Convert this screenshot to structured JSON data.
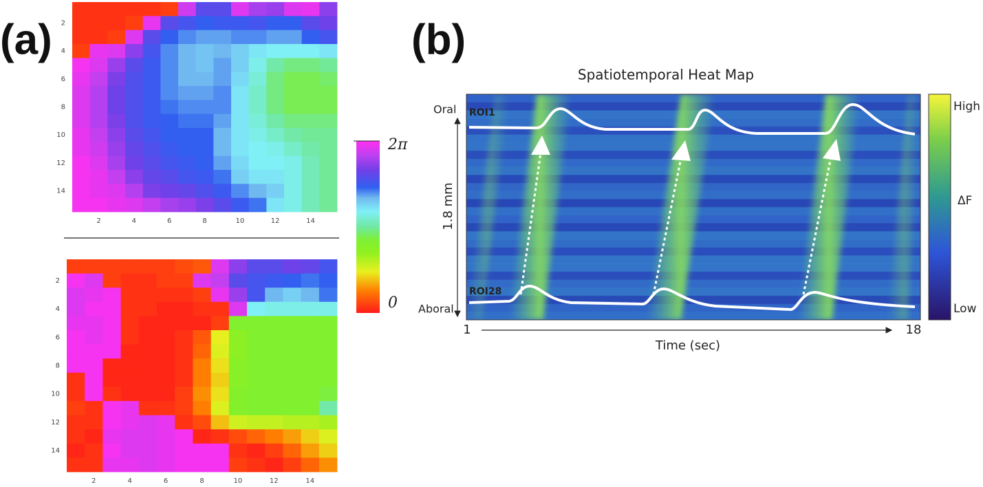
{
  "panel_labels": [
    "(a)",
    "(b)"
  ],
  "chart_data": [
    {
      "type": "heatmap",
      "x": [
        1,
        2,
        3,
        4,
        5,
        6,
        7,
        8,
        9,
        10,
        11,
        12,
        13,
        14,
        15
      ],
      "y": [
        1,
        2,
        3,
        4,
        5,
        6,
        7,
        8,
        9,
        10,
        11,
        12,
        13,
        14,
        15
      ],
      "xlim": [
        0.5,
        15.5
      ],
      "ylim": [
        0.5,
        15.5
      ],
      "xticks": [
        2,
        4,
        6,
        8,
        10,
        12,
        14
      ],
      "yticks": [
        2,
        4,
        6,
        8,
        10,
        12,
        14
      ],
      "z": [
        [
          0.2,
          0.2,
          0.2,
          0.2,
          0.2,
          0.3,
          5.9,
          5.0,
          5.0,
          6.0,
          5.6,
          5.5,
          6.0,
          6.1,
          5.4
        ],
        [
          0.2,
          0.2,
          0.2,
          0.3,
          6.1,
          5.0,
          4.8,
          4.6,
          4.7,
          4.7,
          4.8,
          4.6,
          4.6,
          5.0,
          5.2
        ],
        [
          0.2,
          0.2,
          0.3,
          6.0,
          5.0,
          4.6,
          4.4,
          4.3,
          4.3,
          4.4,
          4.4,
          4.3,
          4.3,
          4.6,
          4.8
        ],
        [
          0.3,
          6.1,
          6.0,
          5.4,
          4.8,
          4.4,
          4.2,
          4.1,
          4.2,
          4.0,
          3.8,
          3.7,
          3.7,
          3.7,
          3.8
        ],
        [
          6.2,
          6.0,
          5.5,
          5.0,
          4.7,
          4.4,
          4.2,
          4.1,
          4.3,
          4.0,
          3.6,
          3.2,
          3.0,
          3.0,
          3.1
        ],
        [
          6.1,
          5.8,
          5.3,
          4.9,
          4.7,
          4.4,
          4.2,
          4.2,
          4.3,
          3.9,
          3.5,
          3.0,
          2.8,
          2.8,
          2.9
        ],
        [
          6.0,
          5.7,
          5.2,
          4.9,
          4.7,
          4.4,
          4.3,
          4.3,
          4.4,
          3.8,
          3.4,
          3.0,
          2.8,
          2.8,
          2.8
        ],
        [
          6.0,
          5.7,
          5.2,
          4.9,
          4.7,
          4.5,
          4.4,
          4.4,
          4.4,
          3.8,
          3.4,
          3.0,
          2.8,
          2.8,
          2.8
        ],
        [
          6.0,
          5.7,
          5.3,
          4.9,
          4.7,
          4.6,
          4.5,
          4.5,
          4.3,
          3.8,
          3.5,
          3.2,
          3.0,
          3.0,
          3.0
        ],
        [
          6.1,
          5.8,
          5.4,
          5.0,
          4.8,
          4.6,
          4.6,
          4.6,
          4.2,
          3.8,
          3.6,
          3.4,
          3.2,
          3.1,
          3.1
        ],
        [
          6.1,
          5.9,
          5.5,
          5.1,
          4.9,
          4.7,
          4.6,
          4.6,
          4.2,
          3.8,
          3.7,
          3.6,
          3.4,
          3.2,
          3.1
        ],
        [
          6.2,
          6.0,
          5.6,
          5.2,
          5.0,
          4.8,
          4.7,
          4.6,
          4.3,
          3.9,
          3.7,
          3.7,
          3.6,
          3.3,
          3.1
        ],
        [
          6.2,
          6.1,
          5.8,
          5.4,
          5.1,
          5.0,
          4.8,
          4.7,
          4.5,
          4.0,
          3.8,
          3.8,
          3.6,
          3.3,
          3.1
        ],
        [
          6.2,
          6.1,
          6.0,
          5.7,
          5.3,
          5.2,
          5.1,
          4.9,
          4.7,
          4.4,
          4.2,
          4.0,
          3.6,
          3.3,
          3.1
        ],
        [
          6.2,
          6.2,
          6.1,
          6.0,
          5.8,
          5.6,
          5.5,
          5.3,
          5.0,
          4.7,
          4.5,
          3.8,
          3.6,
          3.3,
          3.1
        ]
      ]
    },
    {
      "type": "heatmap",
      "x": [
        1,
        2,
        3,
        4,
        5,
        6,
        7,
        8,
        9,
        10,
        11,
        12,
        13,
        14,
        15
      ],
      "y": [
        1,
        2,
        3,
        4,
        5,
        6,
        7,
        8,
        9,
        10,
        11,
        12,
        13,
        14,
        15
      ],
      "xlim": [
        0.5,
        15.5
      ],
      "ylim": [
        0.5,
        15.5
      ],
      "xticks": [
        2,
        4,
        6,
        8,
        10,
        12,
        14
      ],
      "yticks": [
        2,
        4,
        6,
        8,
        10,
        12,
        14
      ],
      "z": [
        [
          0.3,
          0.3,
          0.3,
          0.3,
          0.3,
          0.3,
          0.4,
          0.5,
          6.0,
          5.4,
          5.0,
          5.0,
          5.2,
          5.1,
          4.8
        ],
        [
          6.2,
          6.0,
          0.3,
          0.2,
          0.2,
          0.3,
          0.3,
          6.0,
          5.8,
          5.0,
          4.8,
          4.7,
          4.6,
          4.5,
          4.6
        ],
        [
          6.0,
          6.1,
          6.2,
          0.2,
          0.2,
          0.2,
          0.2,
          0.3,
          6.1,
          5.5,
          4.8,
          4.2,
          4.0,
          4.2,
          4.5
        ],
        [
          6.0,
          6.2,
          6.2,
          0.2,
          0.2,
          0.1,
          0.1,
          0.2,
          0.2,
          6.0,
          3.7,
          3.6,
          3.6,
          3.6,
          3.6
        ],
        [
          6.1,
          6.1,
          6.2,
          0.2,
          0.1,
          0.1,
          0.1,
          0.1,
          0.3,
          2.6,
          2.6,
          2.6,
          2.6,
          2.6,
          2.6
        ],
        [
          6.2,
          6.1,
          6.2,
          0.2,
          0.1,
          0.1,
          0.2,
          0.5,
          1.5,
          2.3,
          2.6,
          2.6,
          2.6,
          2.6,
          2.6
        ],
        [
          6.2,
          6.2,
          6.2,
          0.1,
          0.1,
          0.1,
          0.2,
          0.6,
          1.6,
          2.3,
          2.6,
          2.6,
          2.6,
          2.6,
          2.6
        ],
        [
          6.2,
          6.2,
          0.1,
          0.1,
          0.1,
          0.1,
          0.2,
          0.8,
          1.4,
          2.4,
          2.6,
          2.6,
          2.6,
          2.6,
          2.6
        ],
        [
          0.2,
          6.2,
          0.1,
          0.1,
          0.1,
          0.1,
          0.2,
          0.8,
          1.3,
          2.4,
          2.6,
          2.6,
          2.6,
          2.6,
          2.6
        ],
        [
          0.2,
          6.2,
          0.2,
          0.1,
          0.1,
          0.1,
          0.3,
          0.9,
          1.4,
          2.5,
          2.6,
          2.6,
          2.6,
          2.6,
          2.7
        ],
        [
          0.3,
          0.2,
          6.2,
          6.1,
          0.2,
          0.2,
          0.3,
          0.8,
          1.6,
          2.5,
          2.6,
          2.6,
          2.6,
          2.6,
          3.2
        ],
        [
          0.2,
          0.2,
          6.2,
          6.1,
          6.0,
          6.1,
          0.2,
          0.4,
          1.2,
          1.7,
          1.8,
          1.8,
          1.9,
          1.9,
          2.0
        ],
        [
          0.2,
          0.1,
          6.1,
          6.0,
          6.0,
          6.1,
          6.2,
          0.1,
          0.2,
          0.4,
          0.6,
          0.8,
          1.0,
          1.3,
          1.6
        ],
        [
          0.1,
          0.2,
          6.2,
          6.0,
          6.0,
          6.1,
          6.2,
          6.2,
          6.2,
          0.2,
          0.1,
          0.3,
          0.6,
          1.0,
          1.3
        ],
        [
          0.2,
          0.2,
          6.1,
          6.1,
          6.0,
          6.1,
          6.2,
          6.2,
          6.2,
          0.3,
          0.2,
          0.1,
          0.3,
          0.6,
          0.9
        ]
      ]
    }
  ],
  "colorbar": {
    "lim": [
      0,
      6.28
    ],
    "ticks": [
      0,
      {
        "value": 6.28,
        "label": "2π"
      }
    ]
  },
  "panel_b": {
    "title": "Spatiotemporal Heat Map",
    "top_label": "Oral",
    "bottom_label": "Aboral",
    "top_roi": "ROI1",
    "bottom_roi": "ROI28",
    "distance": "1.8 mm",
    "time_start": 1,
    "time_end": 18,
    "x_label": "Time (sec)",
    "colorbar_high": "High",
    "colorbar_mid": "ΔF",
    "colorbar_low": "Low"
  }
}
